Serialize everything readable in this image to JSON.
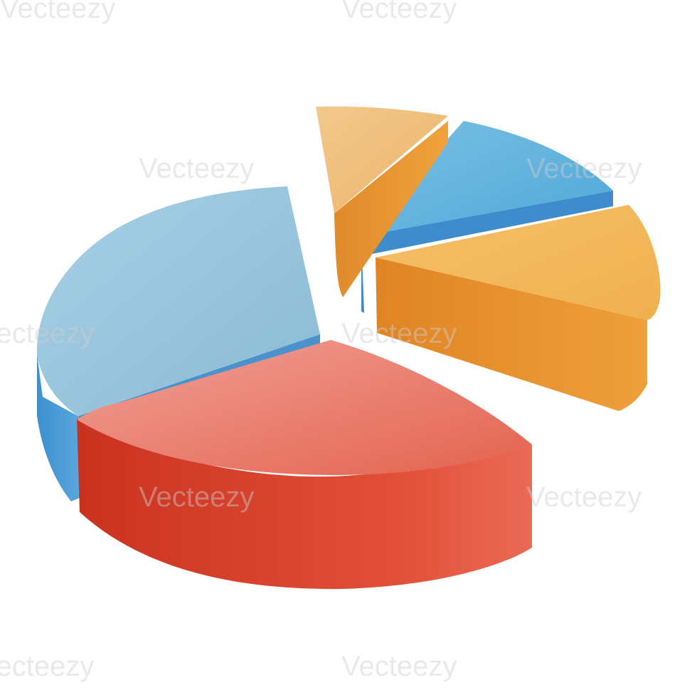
{
  "illustration": {
    "kind": "3d-exploded-pie-chart-icon",
    "colors": {
      "red": "#e04b36",
      "light_blue": "#93c3dc",
      "sky_blue": "#5aafd6",
      "orange": "#f0a23c",
      "light_orange": "#f0b35a"
    },
    "slices": [
      {
        "name": "large-light-blue",
        "color": "light_blue",
        "fraction": 0.3
      },
      {
        "name": "large-red",
        "color": "red",
        "fraction": 0.28
      },
      {
        "name": "orange",
        "color": "orange",
        "fraction": 0.21
      },
      {
        "name": "small-blue",
        "color": "sky_blue",
        "fraction": 0.13
      },
      {
        "name": "small-orange",
        "color": "light_orange",
        "fraction": 0.08
      }
    ]
  },
  "watermark": {
    "text": "Vecteezy"
  }
}
